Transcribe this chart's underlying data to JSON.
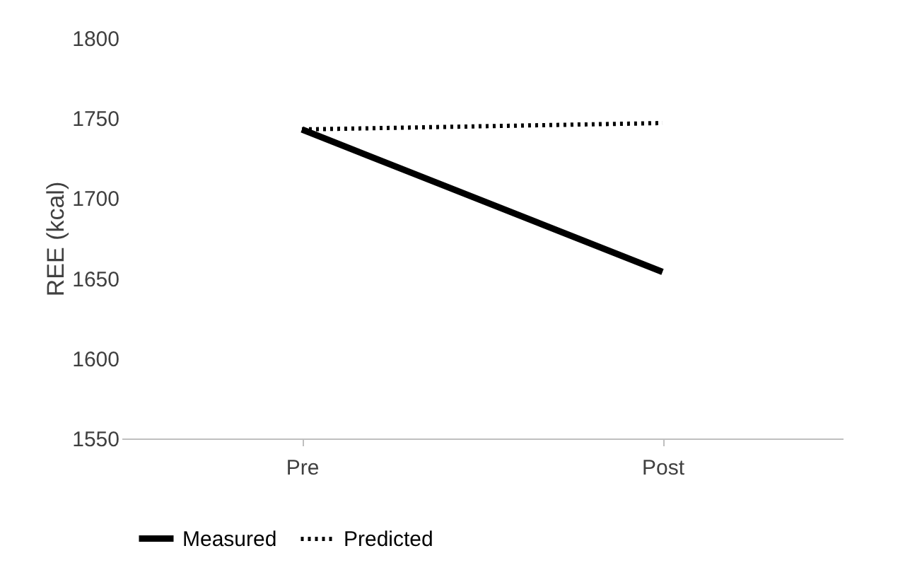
{
  "chart_data": {
    "type": "line",
    "ylabel": "REE (kcal)",
    "categories": [
      "Pre",
      "Post"
    ],
    "series": [
      {
        "name": "Measured",
        "color": "#000000",
        "values": [
          1743,
          1654
        ],
        "line_style": "solid"
      },
      {
        "name": "Predicted",
        "color": "#000000",
        "values": [
          1743,
          1747
        ],
        "line_style": "dotted"
      }
    ],
    "ylim": [
      1550,
      1800
    ],
    "yticks": [
      1550,
      1600,
      1650,
      1700,
      1750,
      1800
    ],
    "grid": false,
    "legend": "bottom",
    "marker": "none"
  }
}
